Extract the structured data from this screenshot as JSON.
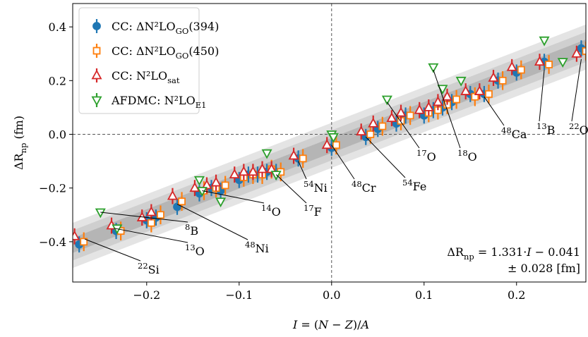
{
  "chart_data": {
    "type": "scatter",
    "x_label": [
      {
        "text": "I",
        "italic": true
      },
      {
        "text": " = ("
      },
      {
        "text": "N",
        "italic": true
      },
      {
        "text": " − "
      },
      {
        "text": "Z",
        "italic": true
      },
      {
        "text": ")/"
      },
      {
        "text": "A",
        "italic": true
      }
    ],
    "y_label": [
      {
        "text": "ΔR"
      },
      {
        "text": "np",
        "sub": true
      },
      {
        "text": " (fm)"
      }
    ],
    "xlim": [
      -0.28,
      0.275
    ],
    "ylim": [
      -0.55,
      0.487
    ],
    "xticks": [
      {
        "value": -0.2,
        "label": "−0.2"
      },
      {
        "value": -0.1,
        "label": "−0.1"
      },
      {
        "value": 0,
        "label": "0.0"
      },
      0.1,
      0.2
    ],
    "yticks": [
      {
        "value": -0.4,
        "label": "−0.4"
      },
      {
        "value": -0.2,
        "label": "−0.2"
      },
      {
        "value": 0,
        "label": "0.0"
      },
      0.2,
      0.4
    ],
    "reference_lines": {
      "x": 0,
      "y": 0
    },
    "legend": "upper left",
    "fit": {
      "slope": 1.331,
      "intercept": -0.041,
      "error": 0.028,
      "label_line1": [
        {
          "text": "ΔR"
        },
        {
          "text": "np",
          "sub": true
        },
        {
          "text": " = 1.331·"
        },
        {
          "text": "I",
          "italic": true
        },
        {
          "text": " − 0.041"
        }
      ],
      "label_line2": [
        {
          "text": "±  0.028 [fm]"
        }
      ]
    },
    "series": [
      {
        "name": [
          {
            "text": "CC: ΔN²LO"
          },
          {
            "text": "GO",
            "sub": true
          },
          {
            "text": "(394)"
          }
        ],
        "color": "#1f77b4",
        "marker": "circle",
        "filled": true,
        "x": [
          -0.273,
          -0.233,
          -0.2,
          -0.19,
          -0.167,
          -0.143,
          -0.13,
          -0.12,
          -0.1,
          -0.09,
          -0.08,
          -0.07,
          -0.06,
          -0.036,
          0.0,
          0.037,
          0.05,
          0.07,
          0.08,
          0.1,
          0.11,
          0.12,
          0.13,
          0.15,
          0.165,
          0.18,
          0.2,
          0.23,
          0.27
        ],
        "values": [
          -0.41,
          -0.36,
          -0.32,
          -0.31,
          -0.27,
          -0.22,
          -0.2,
          -0.21,
          -0.17,
          -0.15,
          -0.15,
          -0.14,
          -0.14,
          -0.09,
          -0.05,
          -0.01,
          0.02,
          0.04,
          0.07,
          0.07,
          0.09,
          0.1,
          0.12,
          0.15,
          0.15,
          0.2,
          0.23,
          0.27,
          0.32
        ],
        "errors": [
          0.03,
          0.03,
          0.03,
          0.03,
          0.03,
          0.03,
          0.03,
          0.03,
          0.03,
          0.03,
          0.03,
          0.03,
          0.03,
          0.03,
          0.03,
          0.03,
          0.03,
          0.03,
          0.03,
          0.03,
          0.03,
          0.03,
          0.03,
          0.03,
          0.03,
          0.03,
          0.03,
          0.03,
          0.03
        ]
      },
      {
        "name": [
          {
            "text": "CC: ΔN²LO"
          },
          {
            "text": "GO",
            "sub": true
          },
          {
            "text": "(450)"
          }
        ],
        "color": "#ff7f0e",
        "marker": "square",
        "filled": false,
        "x": [
          -0.268,
          -0.228,
          -0.195,
          -0.185,
          -0.162,
          -0.138,
          -0.125,
          -0.115,
          -0.095,
          -0.085,
          -0.075,
          -0.065,
          -0.055,
          -0.031,
          0.005,
          0.042,
          0.055,
          0.075,
          0.085,
          0.105,
          0.115,
          0.125,
          0.135,
          0.155,
          0.17,
          0.185,
          0.205,
          0.235,
          0.275
        ],
        "values": [
          -0.4,
          -0.36,
          -0.33,
          -0.3,
          -0.25,
          -0.21,
          -0.2,
          -0.19,
          -0.16,
          -0.15,
          -0.15,
          -0.13,
          -0.14,
          -0.09,
          -0.04,
          0.0,
          0.03,
          0.05,
          0.07,
          0.08,
          0.09,
          0.11,
          0.13,
          0.14,
          0.15,
          0.2,
          0.24,
          0.26,
          0.31
        ],
        "errors": [
          0.035,
          0.035,
          0.035,
          0.035,
          0.035,
          0.035,
          0.035,
          0.035,
          0.035,
          0.035,
          0.035,
          0.035,
          0.035,
          0.035,
          0.035,
          0.035,
          0.035,
          0.035,
          0.035,
          0.035,
          0.035,
          0.035,
          0.035,
          0.035,
          0.035,
          0.035,
          0.035,
          0.035,
          0.035
        ]
      },
      {
        "name": [
          {
            "text": "CC: N²LO"
          },
          {
            "text": "sat",
            "sub": true
          }
        ],
        "color": "#d62728",
        "marker": "triangle-up",
        "filled": false,
        "x": [
          -0.278,
          -0.238,
          -0.205,
          -0.195,
          -0.172,
          -0.148,
          -0.135,
          -0.125,
          -0.105,
          -0.095,
          -0.085,
          -0.075,
          -0.065,
          -0.041,
          -0.005,
          0.032,
          0.045,
          0.065,
          0.075,
          0.095,
          0.105,
          0.115,
          0.125,
          0.145,
          0.16,
          0.175,
          0.195,
          0.225,
          0.265
        ],
        "values": [
          -0.38,
          -0.34,
          -0.31,
          -0.29,
          -0.23,
          -0.2,
          -0.19,
          -0.18,
          -0.15,
          -0.14,
          -0.14,
          -0.13,
          -0.13,
          -0.08,
          -0.04,
          0.01,
          0.04,
          0.06,
          0.08,
          0.09,
          0.1,
          0.12,
          0.14,
          0.16,
          0.16,
          0.21,
          0.25,
          0.27,
          0.3
        ],
        "errors": [
          0.03,
          0.03,
          0.03,
          0.03,
          0.03,
          0.03,
          0.03,
          0.03,
          0.03,
          0.03,
          0.03,
          0.03,
          0.03,
          0.03,
          0.03,
          0.03,
          0.03,
          0.03,
          0.03,
          0.03,
          0.03,
          0.03,
          0.03,
          0.03,
          0.03,
          0.03,
          0.03,
          0.03,
          0.03
        ]
      },
      {
        "name": [
          {
            "text": "AFDMC: N²LO"
          },
          {
            "text": "E1",
            "sub": true
          }
        ],
        "color": "#2ca02c",
        "marker": "triangle-down",
        "filled": false,
        "x": [
          -0.25,
          -0.232,
          -0.143,
          -0.14,
          -0.12,
          -0.07,
          -0.06,
          0.0,
          0.002,
          0.06,
          0.11,
          0.12,
          0.14,
          0.23,
          0.25
        ],
        "values": [
          -0.29,
          -0.35,
          -0.17,
          -0.21,
          -0.25,
          -0.07,
          -0.15,
          0.0,
          -0.01,
          0.13,
          0.25,
          0.17,
          0.2,
          0.35,
          0.27
        ]
      }
    ],
    "annotations": [
      {
        "label": [
          {
            "text": "22",
            "sup": true
          },
          {
            "text": "Si"
          }
        ],
        "x": -0.267,
        "y": -0.39
      },
      {
        "label": [
          {
            "text": "13",
            "sup": true
          },
          {
            "text": "O"
          }
        ],
        "x": -0.235,
        "y": -0.35
      },
      {
        "label": [
          {
            "text": "8",
            "sup": true
          },
          {
            "text": "B"
          }
        ],
        "x": -0.25,
        "y": -0.29
      },
      {
        "label": [
          {
            "text": "48",
            "sup": true
          },
          {
            "text": "Ni"
          }
        ],
        "x": -0.167,
        "y": -0.26
      },
      {
        "label": [
          {
            "text": "14",
            "sup": true
          },
          {
            "text": "O"
          }
        ],
        "x": -0.14,
        "y": -0.21
      },
      {
        "label": [
          {
            "text": "17",
            "sup": true
          },
          {
            "text": "F"
          }
        ],
        "x": -0.06,
        "y": -0.15
      },
      {
        "label": [
          {
            "text": "54",
            "sup": true
          },
          {
            "text": "Ni"
          }
        ],
        "x": -0.036,
        "y": -0.1
      },
      {
        "label": [
          {
            "text": "48",
            "sup": true
          },
          {
            "text": "Cr"
          }
        ],
        "x": 0.0,
        "y": -0.04
      },
      {
        "label": [
          {
            "text": "54",
            "sup": true
          },
          {
            "text": "Fe"
          }
        ],
        "x": 0.037,
        "y": -0.01
      },
      {
        "label": [
          {
            "text": "17",
            "sup": true
          },
          {
            "text": "O"
          }
        ],
        "x": 0.06,
        "y": 0.12
      },
      {
        "label": [
          {
            "text": "18",
            "sup": true
          },
          {
            "text": "O"
          }
        ],
        "x": 0.11,
        "y": 0.24
      },
      {
        "label": [
          {
            "text": "48",
            "sup": true
          },
          {
            "text": "Ca"
          }
        ],
        "x": 0.165,
        "y": 0.14
      },
      {
        "label": [
          {
            "text": "13",
            "sup": true
          },
          {
            "text": "B"
          }
        ],
        "x": 0.23,
        "y": 0.24
      },
      {
        "label": [
          {
            "text": "22",
            "sup": true
          },
          {
            "text": "O"
          }
        ],
        "x": 0.27,
        "y": 0.28
      }
    ]
  }
}
